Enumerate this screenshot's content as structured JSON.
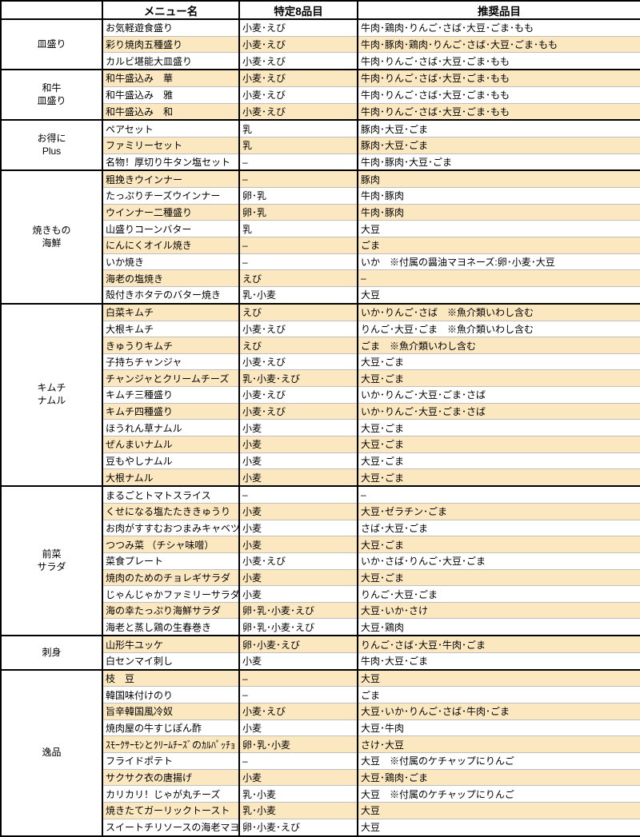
{
  "colors": {
    "row_shade": "#fce8c0",
    "grid_line_light": "#bfbfbf",
    "grid_line_dark": "#000000",
    "text": "#000000"
  },
  "table": {
    "headers": {
      "category": "",
      "menu": "メニュー名",
      "specific8": "特定8品目",
      "recommended": "推奨品目"
    },
    "sections": [
      {
        "category": [
          "皿盛り"
        ],
        "rows": [
          {
            "menu": "お気軽遊食盛り",
            "specific8": "小麦･えび",
            "recommended": "牛肉･鶏肉･りんご･さば･大豆･ごま･もも"
          },
          {
            "menu": "彩り焼肉五種盛り",
            "specific8": "小麦･えび",
            "recommended": "牛肉･豚肉･鶏肉･りんご･さば･大豆･ごま･もも"
          },
          {
            "menu": "カルビ堪能大皿盛り",
            "specific8": "小麦･えび",
            "recommended": "牛肉･りんご･さば･大豆･ごま･もも"
          }
        ]
      },
      {
        "category": [
          "和牛",
          "皿盛り"
        ],
        "rows": [
          {
            "menu": "和牛盛込み　華",
            "specific8": "小麦･えび",
            "recommended": "牛肉･りんご･さば･大豆･ごま･もも"
          },
          {
            "menu": "和牛盛込み　雅",
            "specific8": "小麦･えび",
            "recommended": "牛肉･りんご･さば･大豆･ごま･もも"
          },
          {
            "menu": "和牛盛込み　和",
            "specific8": "小麦･えび",
            "recommended": "牛肉･りんご･さば･大豆･ごま･もも"
          }
        ]
      },
      {
        "category": [
          "お得に",
          "Plus"
        ],
        "rows": [
          {
            "menu": "ペアセット",
            "specific8": "乳",
            "recommended": "豚肉･大豆･ごま"
          },
          {
            "menu": "ファミリーセット",
            "specific8": "乳",
            "recommended": "豚肉･大豆･ごま"
          },
          {
            "menu": "名物！厚切り牛タン塩セット",
            "specific8": "–",
            "recommended": "牛肉･豚肉･大豆･ごま"
          }
        ]
      },
      {
        "category": [
          "焼きもの",
          "海鮮"
        ],
        "rows": [
          {
            "menu": "粗挽きウインナー",
            "specific8": "–",
            "recommended": "豚肉"
          },
          {
            "menu": "たっぷりチーズウインナー",
            "specific8": "卵･乳",
            "recommended": "牛肉･豚肉"
          },
          {
            "menu": "ウインナー二種盛り",
            "specific8": "卵･乳",
            "recommended": "牛肉･豚肉"
          },
          {
            "menu": "山盛りコーンバター",
            "specific8": "乳",
            "recommended": "大豆"
          },
          {
            "menu": "にんにくオイル焼き",
            "specific8": "–",
            "recommended": "ごま"
          },
          {
            "menu": "いか焼き",
            "specific8": "–",
            "recommended": "いか　※付属の醤油マヨネーズ:卵･小麦･大豆"
          },
          {
            "menu": "海老の塩焼き",
            "specific8": "えび",
            "recommended": "–"
          },
          {
            "menu": "殻付きホタテのバター焼き",
            "specific8": "乳･小麦",
            "recommended": "大豆"
          }
        ]
      },
      {
        "category": [
          "キムチ",
          "ナムル"
        ],
        "rows": [
          {
            "menu": "白菜キムチ",
            "specific8": "えび",
            "recommended": "いか･りんご･さば　※魚介類いわし含む"
          },
          {
            "menu": "大根キムチ",
            "specific8": "小麦･えび",
            "recommended": "りんご･大豆･ごま　※魚介類いわし含む"
          },
          {
            "menu": "きゅうりキムチ",
            "specific8": "えび",
            "recommended": "ごま　※魚介類いわし含む"
          },
          {
            "menu": "子持ちチャンジャ",
            "specific8": "小麦･えび",
            "recommended": "大豆･ごま"
          },
          {
            "menu": "チャンジャとクリームチーズ",
            "specific8": "乳･小麦･えび",
            "recommended": "大豆･ごま"
          },
          {
            "menu": "キムチ三種盛り",
            "specific8": "小麦･えび",
            "recommended": "いか･りんご･大豆･ごま･さば"
          },
          {
            "menu": "キムチ四種盛り",
            "specific8": "小麦･えび",
            "recommended": "いか･りんご･大豆･ごま･さば"
          },
          {
            "menu": "ほうれん草ナムル",
            "specific8": "小麦",
            "recommended": "大豆･ごま"
          },
          {
            "menu": "ぜんまいナムル",
            "specific8": "小麦",
            "recommended": "大豆･ごま"
          },
          {
            "menu": "豆もやしナムル",
            "specific8": "小麦",
            "recommended": "大豆･ごま"
          },
          {
            "menu": "大根ナムル",
            "specific8": "小麦",
            "recommended": "大豆･ごま"
          }
        ]
      },
      {
        "category": [
          "前菜",
          "サラダ"
        ],
        "rows": [
          {
            "menu": "まるごとトマトスライス",
            "specific8": "–",
            "recommended": "–"
          },
          {
            "menu": "くせになる塩たたききゅうり",
            "specific8": "小麦",
            "recommended": "大豆･ゼラチン･ごま"
          },
          {
            "menu": "お肉がすすむおつまみキャベツ",
            "specific8": "小麦",
            "recommended": "さば･大豆･ごま"
          },
          {
            "menu": "つつみ菜 （チシャ味噌）",
            "specific8": "小麦",
            "recommended": "大豆･ごま"
          },
          {
            "menu": "菜食プレート",
            "specific8": "小麦･えび",
            "recommended": "いか･さば･りんご･大豆･ごま"
          },
          {
            "menu": "焼肉のためのチョレギサラダ",
            "specific8": "小麦",
            "recommended": "大豆･ごま"
          },
          {
            "menu": "じゃんじゃかファミリーサラダ",
            "specific8": "小麦",
            "recommended": "りんご･大豆･ごま"
          },
          {
            "menu": "海の幸たっぷり海鮮サラダ",
            "specific8": "卵･乳･小麦･えび",
            "recommended": "大豆･いか･さけ"
          },
          {
            "menu": "海老と蒸し鶏の生春巻き",
            "specific8": "卵･乳･小麦･えび",
            "recommended": "大豆･鶏肉"
          }
        ]
      },
      {
        "category": [
          "刺身"
        ],
        "rows": [
          {
            "menu": "山形牛ユッケ",
            "specific8": "卵･小麦･えび",
            "recommended": "りんご･さば･大豆･牛肉･ごま"
          },
          {
            "menu": "白センマイ刺し",
            "specific8": "小麦",
            "recommended": "牛肉･大豆･ごま"
          }
        ]
      },
      {
        "category": [
          "逸品"
        ],
        "rows": [
          {
            "menu": "枝　豆",
            "specific8": "–",
            "recommended": "大豆"
          },
          {
            "menu": "韓国味付けのり",
            "specific8": "–",
            "recommended": "ごま"
          },
          {
            "menu": "旨辛韓国風冷奴",
            "specific8": "小麦･えび",
            "recommended": "大豆･いか･りんご･さば･牛肉･ごま"
          },
          {
            "menu": "焼肉屋の牛すじぽん酢",
            "specific8": "小麦",
            "recommended": "大豆･牛肉"
          },
          {
            "menu": "ｽﾓｰｸｻｰﾓﾝとｸﾘｰﾑﾁｰｽﾞのｶﾙﾊﾟｯﾁｮ",
            "specific8": "卵･乳･小麦",
            "recommended": "さけ･大豆"
          },
          {
            "menu": "フライドポテト",
            "specific8": "–",
            "recommended": "大豆　※付属のケチャップにりんご"
          },
          {
            "menu": "サクサク衣の唐揚げ",
            "specific8": "小麦",
            "recommended": "大豆･鶏肉･ごま"
          },
          {
            "menu": "カリカリ！じゃが丸チーズ",
            "specific8": "乳･小麦",
            "recommended": "大豆　※付属のケチャップにりんご"
          },
          {
            "menu": "焼きたてガーリックトースト",
            "specific8": "乳･小麦",
            "recommended": "大豆"
          },
          {
            "menu": "スイートチリソースの海老マヨ",
            "specific8": "卵･小麦･えび",
            "recommended": "大豆"
          }
        ]
      }
    ]
  }
}
